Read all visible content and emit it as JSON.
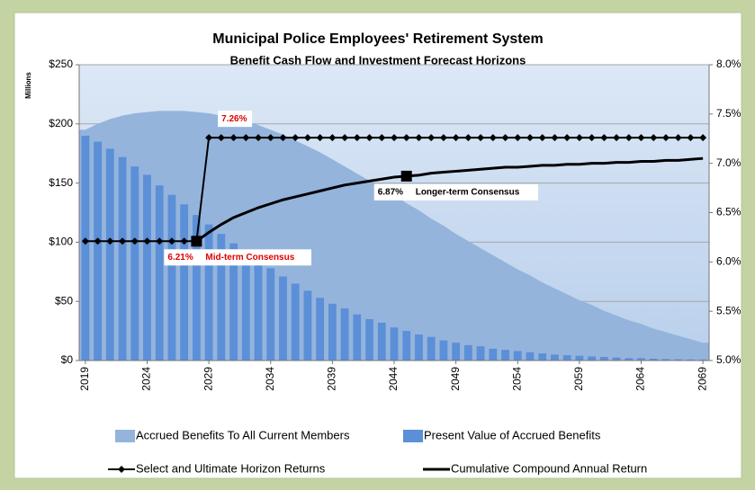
{
  "chart_data": {
    "type": "combo",
    "title": "Municipal Police Employees' Retirement System",
    "subtitle": "Benefit Cash Flow and Investment Forecast Horizons",
    "y_label": "Millions",
    "x": [
      2019,
      2020,
      2021,
      2022,
      2023,
      2024,
      2025,
      2026,
      2027,
      2028,
      2029,
      2030,
      2031,
      2032,
      2033,
      2034,
      2035,
      2036,
      2037,
      2038,
      2039,
      2040,
      2041,
      2042,
      2043,
      2044,
      2045,
      2046,
      2047,
      2048,
      2049,
      2050,
      2051,
      2052,
      2053,
      2054,
      2055,
      2056,
      2057,
      2058,
      2059,
      2060,
      2061,
      2062,
      2063,
      2064,
      2065,
      2066,
      2067,
      2068,
      2069
    ],
    "xticks": [
      2019,
      2024,
      2029,
      2034,
      2039,
      2044,
      2049,
      2054,
      2059,
      2064,
      2069
    ],
    "ylim": [
      0,
      250
    ],
    "yticks": [
      {
        "value": 0,
        "label": "$0"
      },
      {
        "value": 50,
        "label": "$50"
      },
      {
        "value": 100,
        "label": "$100"
      },
      {
        "value": 150,
        "label": "$150"
      },
      {
        "value": 200,
        "label": "$200"
      },
      {
        "value": 250,
        "label": "$250"
      }
    ],
    "y2lim": [
      5.0,
      8.0
    ],
    "y2ticks": [
      {
        "value": 5.0,
        "label": "5.0%"
      },
      {
        "value": 5.5,
        "label": "5.5%"
      },
      {
        "value": 6.0,
        "label": "6.0%"
      },
      {
        "value": 6.5,
        "label": "6.5%"
      },
      {
        "value": 7.0,
        "label": "7.0%"
      },
      {
        "value": 7.5,
        "label": "7.5%"
      },
      {
        "value": 8.0,
        "label": "8.0%"
      }
    ],
    "grid": true,
    "legend": "bottom",
    "series": [
      {
        "name": "Accrued Benefits To All Current Members",
        "type": "area",
        "color": "#94b4dc",
        "values": [
          195,
          200,
          204,
          207,
          209,
          210,
          211,
          211,
          211,
          210,
          209,
          207,
          205,
          202,
          199,
          195,
          191,
          186,
          181,
          176,
          170,
          164,
          158,
          152,
          146,
          140,
          133,
          127,
          120,
          114,
          107,
          101,
          95,
          89,
          83,
          77,
          72,
          66,
          61,
          56,
          51,
          47,
          42,
          38,
          34,
          31,
          27,
          24,
          21,
          18,
          15
        ]
      },
      {
        "name": "Present Value of Accrued Benefits",
        "type": "bar",
        "color": "#5b8fd8",
        "values": [
          190,
          185,
          179,
          172,
          164,
          157,
          148,
          140,
          132,
          123,
          115,
          107,
          99,
          92,
          85,
          78,
          71,
          65,
          59,
          53,
          48,
          44,
          39,
          35,
          32,
          28,
          25,
          22,
          20,
          17,
          15,
          13,
          12,
          10,
          9,
          8,
          7,
          6,
          5,
          4.5,
          4,
          3.5,
          3,
          2.5,
          2,
          2,
          1.5,
          1.2,
          1,
          0.9,
          0.8
        ]
      },
      {
        "name": "Select and Ultimate Horizon Returns",
        "type": "line",
        "axis": "y2",
        "color": "#000000",
        "marker": "diamond",
        "values": [
          6.21,
          6.21,
          6.21,
          6.21,
          6.21,
          6.21,
          6.21,
          6.21,
          6.21,
          6.21,
          7.26,
          7.26,
          7.26,
          7.26,
          7.26,
          7.26,
          7.26,
          7.26,
          7.26,
          7.26,
          7.26,
          7.26,
          7.26,
          7.26,
          7.26,
          7.26,
          7.26,
          7.26,
          7.26,
          7.26,
          7.26,
          7.26,
          7.26,
          7.26,
          7.26,
          7.26,
          7.26,
          7.26,
          7.26,
          7.26,
          7.26,
          7.26,
          7.26,
          7.26,
          7.26,
          7.26,
          7.26,
          7.26,
          7.26,
          7.26,
          7.26
        ]
      },
      {
        "name": "Cumulative Compound Annual Return",
        "type": "line",
        "axis": "y2",
        "color": "#000000",
        "values": [
          null,
          null,
          null,
          null,
          null,
          null,
          null,
          null,
          null,
          6.21,
          6.3,
          6.38,
          6.45,
          6.5,
          6.55,
          6.59,
          6.63,
          6.66,
          6.69,
          6.72,
          6.75,
          6.78,
          6.8,
          6.82,
          6.84,
          6.86,
          6.87,
          6.88,
          6.9,
          6.91,
          6.92,
          6.93,
          6.94,
          6.95,
          6.96,
          6.96,
          6.97,
          6.98,
          6.98,
          6.99,
          6.99,
          7.0,
          7.0,
          7.01,
          7.01,
          7.02,
          7.02,
          7.03,
          7.03,
          7.04,
          7.05
        ]
      }
    ],
    "annotations": [
      {
        "x": 2029,
        "y": 7.26,
        "label": "7.26%",
        "color": "#e00000"
      },
      {
        "x": 2028,
        "y": 6.21,
        "label": "6.21%",
        "text": "Mid-term Consensus",
        "color": "#e00000"
      },
      {
        "x": 2045,
        "y": 6.87,
        "label": "6.87%",
        "text": "Longer-term Consensus",
        "color": "#000000"
      }
    ]
  }
}
